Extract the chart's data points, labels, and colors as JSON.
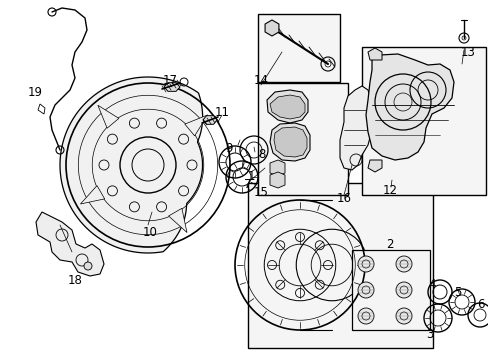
{
  "bg": "#ffffff",
  "lc": "#000000",
  "figsize": [
    4.89,
    3.6
  ],
  "dpi": 100,
  "shield_color": "#f0f0f0",
  "box_color": "#f5f5f5",
  "pad_color": "#e0e0e0"
}
